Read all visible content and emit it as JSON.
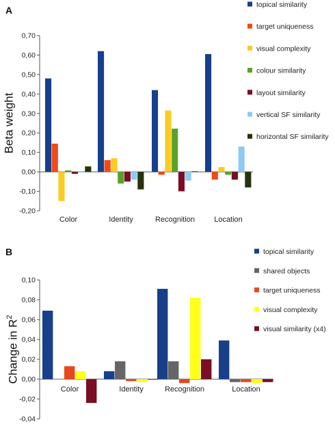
{
  "chart_data": [
    {
      "panel_label": "A",
      "type": "bar",
      "ylabel": "Beta weight",
      "ylabel_sup": "",
      "ylim": [
        -0.2,
        0.7
      ],
      "yticks": [
        "-0,20",
        "-0,10",
        "0,00",
        "0,10",
        "0,20",
        "0,30",
        "0,40",
        "0,50",
        "0,60",
        "0,70"
      ],
      "ytick_values": [
        -0.2,
        -0.1,
        0,
        0.1,
        0.2,
        0.3,
        0.4,
        0.5,
        0.6,
        0.7
      ],
      "categories": [
        "Color",
        "Identity",
        "Recognition",
        "Location"
      ],
      "legend_position": "right",
      "series": [
        {
          "name": "topical similarity",
          "color": "#173f8a",
          "values": [
            0.48,
            0.62,
            0.42,
            0.605
          ]
        },
        {
          "name": "target uniqueness",
          "color": "#f04a18",
          "values": [
            0.145,
            0.06,
            -0.015,
            -0.04
          ]
        },
        {
          "name": "visual complexity",
          "color": "#fbcb24",
          "values": [
            -0.15,
            0.07,
            0.315,
            0.025
          ]
        },
        {
          "name": "colour similarity",
          "color": "#5aa227",
          "values": [
            0.008,
            -0.06,
            0.222,
            -0.015
          ]
        },
        {
          "name": "layout similarity",
          "color": "#7a0e24",
          "values": [
            -0.01,
            -0.05,
            -0.1,
            -0.04
          ]
        },
        {
          "name": "vertical SF similarity",
          "color": "#8ecbf4",
          "values": [
            0.0,
            -0.04,
            -0.045,
            0.13
          ]
        },
        {
          "name": "horizontal SF similarity",
          "color": "#26330d",
          "values": [
            0.028,
            -0.09,
            0.003,
            -0.08
          ]
        }
      ]
    },
    {
      "panel_label": "B",
      "type": "bar",
      "ylabel": "Change in R",
      "ylabel_sup": "2",
      "ylim": [
        -0.04,
        0.1
      ],
      "yticks": [
        "-0,04",
        "-0,02",
        "0,00",
        "0,02",
        "0,04",
        "0,06",
        "0,08",
        "0,10"
      ],
      "ytick_values": [
        -0.04,
        -0.02,
        0,
        0.02,
        0.04,
        0.06,
        0.08,
        0.1
      ],
      "categories": [
        "Color",
        "Identity",
        "Recognition",
        "Location"
      ],
      "legend_position": "right",
      "series": [
        {
          "name": "topical similarity",
          "color": "#173f8a",
          "values": [
            0.069,
            0.008,
            0.091,
            0.039
          ]
        },
        {
          "name": "shared objects",
          "color": "#666666",
          "values": [
            0.0003,
            0.018,
            0.018,
            -0.003
          ]
        },
        {
          "name": "target uniqueness",
          "color": "#e6481e",
          "values": [
            0.013,
            -0.002,
            -0.004,
            -0.003
          ]
        },
        {
          "name": "visual complexity",
          "color": "#ffff1a",
          "values": [
            0.008,
            -0.003,
            0.082,
            -0.004
          ]
        },
        {
          "name": "visual similarity (x4)",
          "color": "#7a0e24",
          "values": [
            -0.024,
            0.0,
            0.02,
            -0.003
          ]
        }
      ]
    }
  ]
}
